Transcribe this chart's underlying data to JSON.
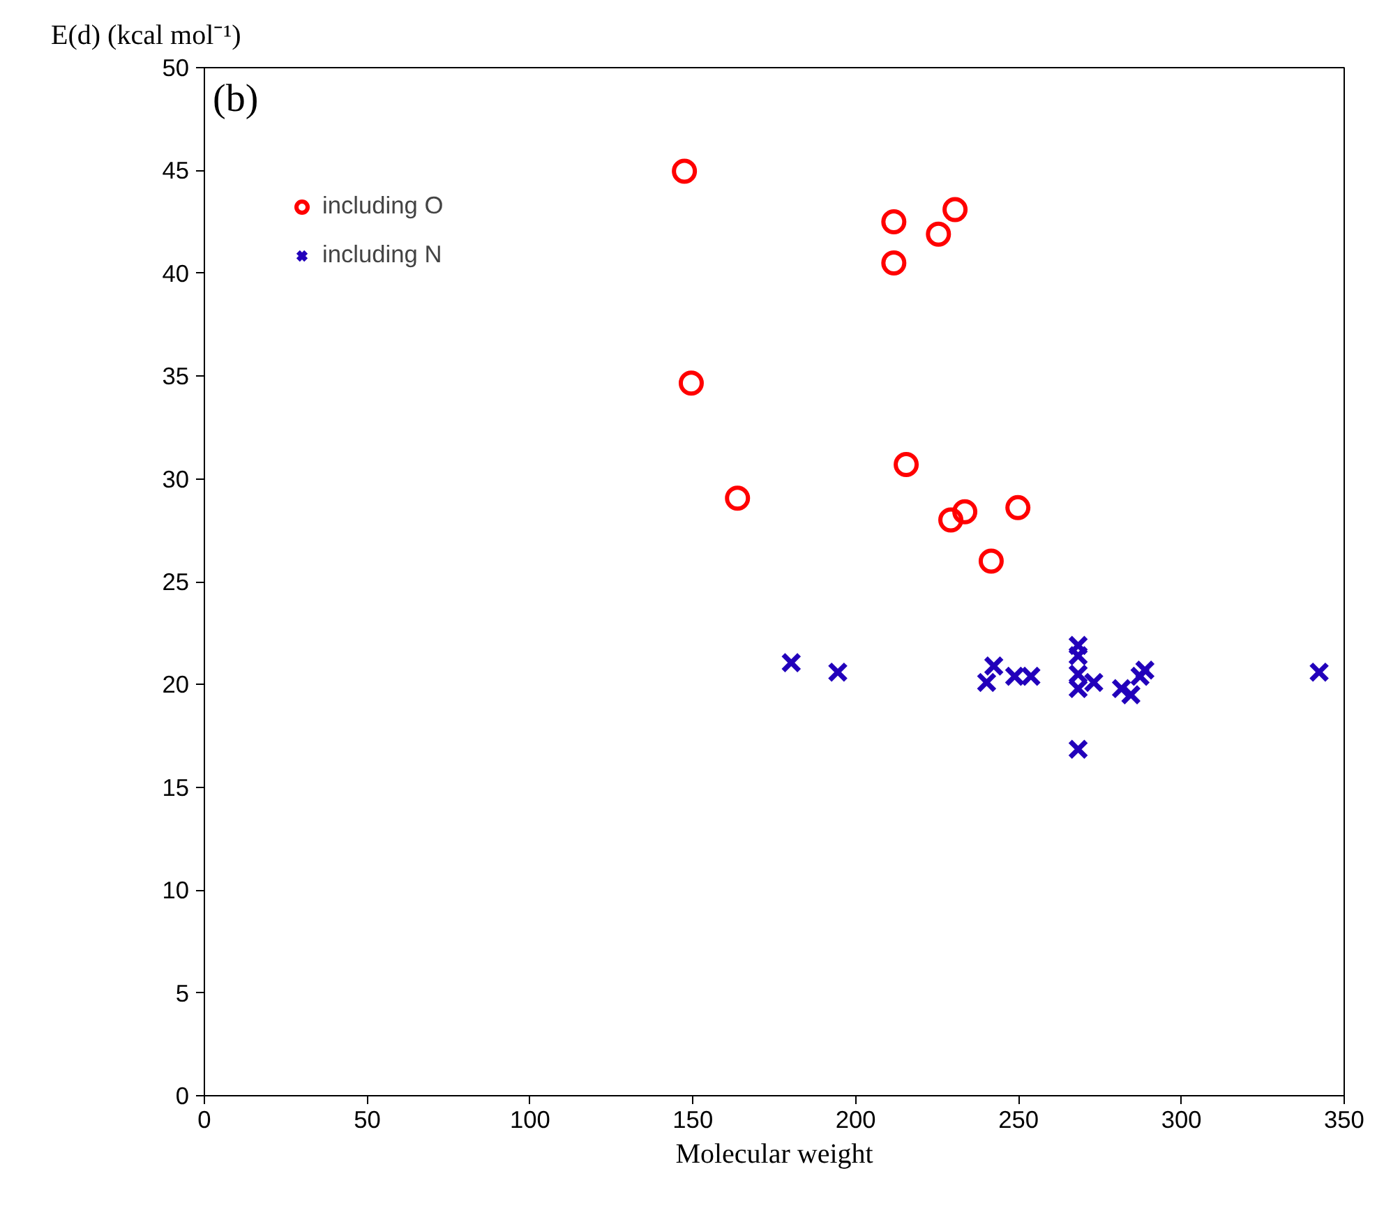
{
  "chart_data": {
    "type": "scatter",
    "xlabel": "Molecular weight",
    "ylabel": "E(d) (kcal mol⁻¹)",
    "annotations": [
      "(b)"
    ],
    "xlim": [
      0,
      350
    ],
    "ylim": [
      0,
      50
    ],
    "xticks": [
      0,
      50,
      100,
      150,
      200,
      250,
      300,
      350
    ],
    "yticks": [
      0,
      5,
      10,
      15,
      20,
      25,
      30,
      35,
      40,
      45,
      50
    ],
    "grid": false,
    "legend": "top left",
    "series": [
      {
        "name": "including O",
        "color": "#ff0000",
        "marker": "circle",
        "x": [
          147.4,
          149.5,
          163.7,
          211.7,
          211.7,
          215.5,
          225.4,
          230.5,
          229.2,
          233.5,
          241.6,
          249.8
        ],
        "values": [
          44.96,
          34.66,
          29.06,
          42.5,
          40.5,
          30.7,
          41.9,
          43.1,
          28.0,
          28.4,
          26.0,
          28.6
        ]
      },
      {
        "name": "including N",
        "color": "#2200bb",
        "marker": "cross",
        "x": [
          180.2,
          194.5,
          242.4,
          240.2,
          248.8,
          253.8,
          268.3,
          268.3,
          268.3,
          268.3,
          273.1,
          281.6,
          284.5,
          287.3,
          288.8,
          268.3,
          342.3
        ],
        "values": [
          21.06,
          20.6,
          20.9,
          20.1,
          20.4,
          20.4,
          21.9,
          21.4,
          20.5,
          19.8,
          20.1,
          19.8,
          19.5,
          20.4,
          20.7,
          16.85,
          20.6
        ]
      }
    ]
  }
}
